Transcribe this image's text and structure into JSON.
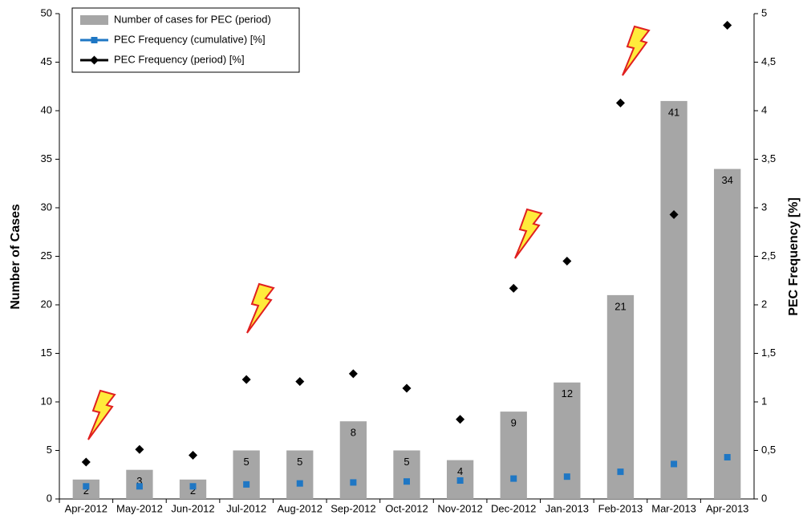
{
  "chart_data": {
    "type": "bar-line",
    "categories": [
      "Apr-2012",
      "May-2012",
      "Jun-2012",
      "Jul-2012",
      "Aug-2012",
      "Sep-2012",
      "Oct-2012",
      "Nov-2012",
      "Dec-2012",
      "Jan-2013",
      "Feb-2013",
      "Mar-2013",
      "Apr-2013"
    ],
    "y_label": "Number of Cases",
    "y2_label": "PEC Frequency [%]",
    "ylim": [
      0,
      50
    ],
    "yticks": [
      0,
      5,
      10,
      15,
      20,
      25,
      30,
      35,
      40,
      45,
      50
    ],
    "y2lim": [
      0,
      5
    ],
    "y2ticks": [
      0,
      {
        "value": 0.5,
        "label": "0,5"
      },
      1,
      {
        "value": 1.5,
        "label": "1,5"
      },
      2,
      {
        "value": 2.5,
        "label": "2,5"
      },
      3,
      {
        "value": 3.5,
        "label": "3,5"
      },
      4,
      {
        "value": 4.5,
        "label": "4,5"
      },
      5
    ],
    "legend": "upper left",
    "series": [
      {
        "name": "Number of cases for PEC (period)",
        "type": "bar",
        "color": "#a6a6a6",
        "values": [
          2,
          3,
          2,
          5,
          5,
          8,
          5,
          4,
          9,
          12,
          21,
          41,
          34
        ]
      },
      {
        "name": "PEC Frequency (cumulative) [%]",
        "type": "line",
        "axis": "y2",
        "color": "#1f77c4",
        "marker": "square",
        "values": [
          0.13,
          0.13,
          0.13,
          0.15,
          0.16,
          0.17,
          0.18,
          0.19,
          0.21,
          0.23,
          0.28,
          0.36,
          0.43
        ]
      },
      {
        "name": "PEC Frequency (period) [%]",
        "type": "line",
        "axis": "y2",
        "color": "#000000",
        "marker": "diamond",
        "values": [
          0.38,
          0.51,
          0.45,
          1.23,
          1.21,
          1.29,
          1.14,
          0.82,
          2.17,
          2.45,
          4.08,
          2.93,
          4.88
        ]
      }
    ]
  }
}
